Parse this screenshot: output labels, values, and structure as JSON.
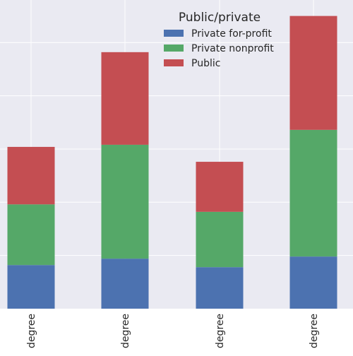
{
  "chart_data": {
    "type": "bar",
    "stacked": true,
    "title": "",
    "xlabel": "",
    "ylabel": "",
    "categories": [
      "degree",
      "degree",
      "degree",
      "degree"
    ],
    "ylim": [
      0,
      290
    ],
    "grid": true,
    "legend": {
      "title": "Public/private",
      "placement": "top-right"
    },
    "series": [
      {
        "name": "Private for-profit",
        "color": "#4c72b0",
        "values": [
          41,
          47,
          39,
          49
        ]
      },
      {
        "name": "Private nonprofit",
        "color": "#55a868",
        "values": [
          57,
          107,
          52,
          119
        ]
      },
      {
        "name": "Public",
        "color": "#c44e52",
        "values": [
          54,
          87,
          47,
          107
        ]
      }
    ]
  }
}
